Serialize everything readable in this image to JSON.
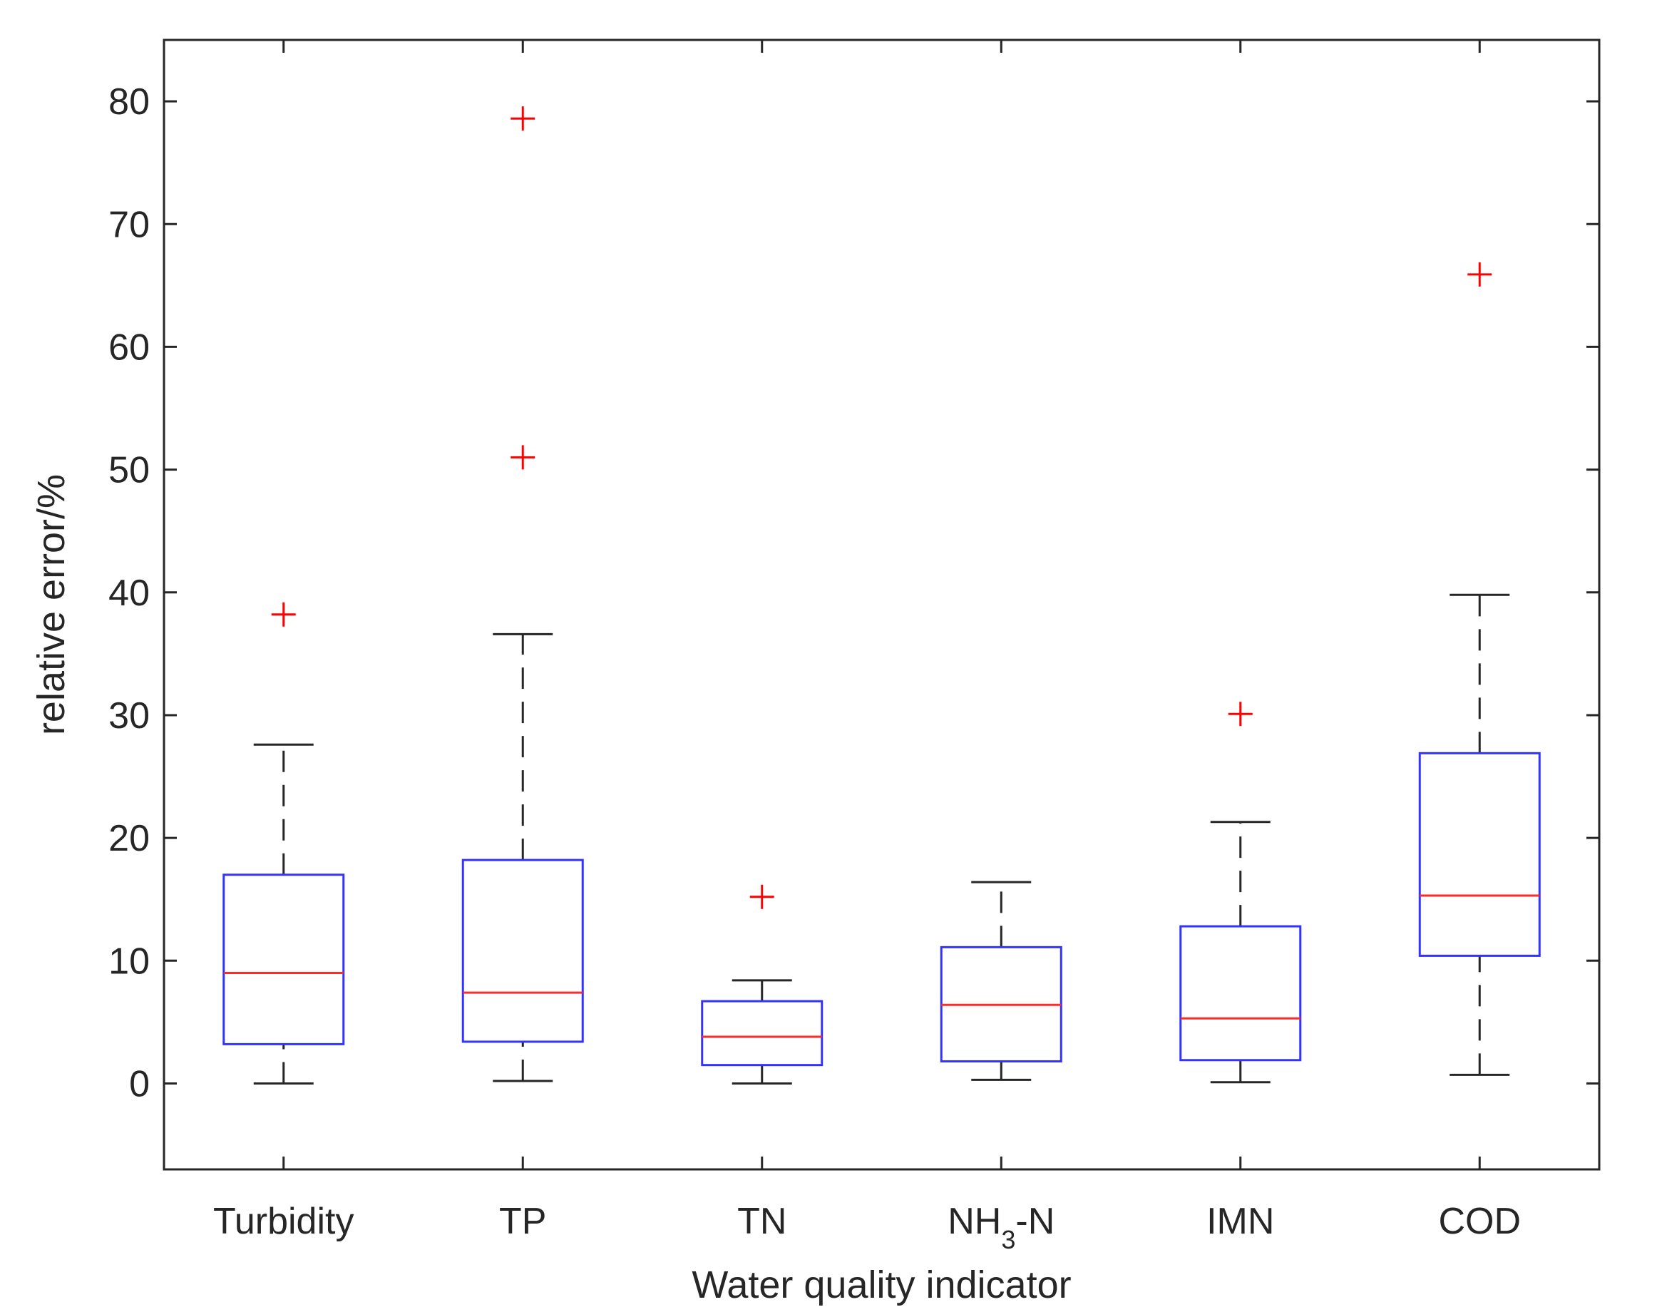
{
  "chart_data": {
    "type": "boxplot",
    "title": "",
    "xlabel": "Water quality indicator",
    "ylabel": "relative error/%",
    "ylim": [
      -7,
      85
    ],
    "yticks": [
      0,
      10,
      20,
      30,
      40,
      50,
      60,
      70,
      80
    ],
    "grid": false,
    "colors": {
      "box": "#3333ff",
      "median": "#ff2a2a",
      "whisker": "#262626",
      "outlier": "#ff0000",
      "axis": "#262626"
    },
    "categories": [
      {
        "label": "Turbidity",
        "sub": "",
        "suffix": "",
        "whisker_low": 0,
        "q1": 3.2,
        "median": 9.0,
        "q3": 17.0,
        "whisker_high": 27.6,
        "outliers": [
          38.2
        ]
      },
      {
        "label": "TP",
        "sub": "",
        "suffix": "",
        "whisker_low": 0.2,
        "q1": 3.4,
        "median": 7.4,
        "q3": 18.2,
        "whisker_high": 36.6,
        "outliers": [
          51.0,
          78.6
        ]
      },
      {
        "label": "TN",
        "sub": "",
        "suffix": "",
        "whisker_low": 0,
        "q1": 1.5,
        "median": 3.8,
        "q3": 6.7,
        "whisker_high": 8.4,
        "outliers": [
          15.2
        ]
      },
      {
        "label": "NH",
        "sub": "3",
        "suffix": "-N",
        "whisker_low": 0.3,
        "q1": 1.8,
        "median": 6.4,
        "q3": 11.1,
        "whisker_high": 16.4,
        "outliers": []
      },
      {
        "label": "IMN",
        "sub": "",
        "suffix": "",
        "whisker_low": 0.1,
        "q1": 1.9,
        "median": 5.3,
        "q3": 12.8,
        "whisker_high": 21.3,
        "outliers": [
          30.1
        ]
      },
      {
        "label": "COD",
        "sub": "",
        "suffix": "",
        "whisker_low": 0.7,
        "q1": 10.4,
        "median": 15.3,
        "q3": 26.9,
        "whisker_high": 39.8,
        "outliers": [
          65.9
        ]
      }
    ]
  }
}
